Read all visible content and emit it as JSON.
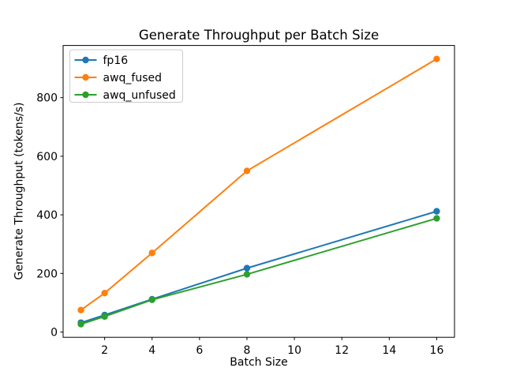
{
  "chart_data": {
    "type": "line",
    "title": "Generate Throughput per Batch Size",
    "xlabel": "Batch Size",
    "ylabel": "Generate Throughput (tokens/s)",
    "x": [
      1,
      2,
      4,
      8,
      16
    ],
    "series": [
      {
        "name": "fp16",
        "color": "#1f77b4",
        "values": [
          32,
          58,
          112,
          218,
          412
        ]
      },
      {
        "name": "awq_fused",
        "color": "#ff7f0e",
        "values": [
          75,
          133,
          270,
          550,
          932
        ]
      },
      {
        "name": "awq_unfused",
        "color": "#2ca02c",
        "values": [
          27,
          53,
          110,
          197,
          388
        ]
      }
    ],
    "xticks": [
      2,
      4,
      6,
      8,
      10,
      12,
      14,
      16
    ],
    "yticks": [
      0,
      200,
      400,
      600,
      800
    ],
    "xlim": [
      0.25,
      16.75
    ],
    "ylim": [
      -18,
      978
    ],
    "legend_position": "upper left",
    "grid": false,
    "colors": {
      "axis": "#000000",
      "legend_border": "#cccccc",
      "background": "#ffffff"
    }
  }
}
